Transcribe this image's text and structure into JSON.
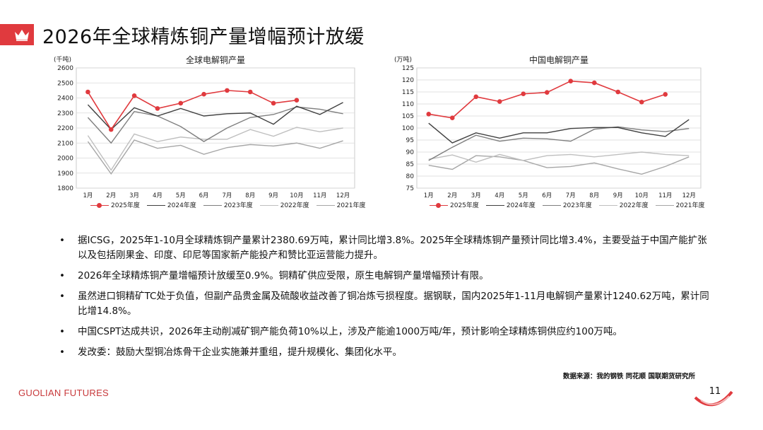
{
  "slide": {
    "title": "2026年全球精炼铜产量增幅预计放缓",
    "page_number": "11",
    "logo_text": "GUOLIAN FUTURES",
    "source": "数据来源：我的钢铁  同花顺  国联期货研究所",
    "brand_color": "#e03a3e"
  },
  "bullets": [
    "据ICSG，2025年1-10月全球精炼铜产量累计2380.69万吨，累计同比增3.8%。2025年全球精炼铜产量预计同比增3.4%，主要受益于中国产能扩张以及包括刚果金、印度、印尼等国家新产能投产和赞比亚运营能力提升。",
    "2026年全球精炼铜产量增幅预计放缓至0.9%。铜精矿供应受限，原生电解铜产量增幅预计有限。",
    "虽然进口铜精矿TC处于负值，但副产品贵金属及硫酸收益改善了铜冶炼亏损程度。据钢联，国内2025年1-11月电解铜产量累计1240.62万吨，累计同比增14.8%。",
    "中国CSPT达成共识，2026年主动削减矿铜产能负荷10%以上，涉及产能逾1000万吨/年，预计影响全球精炼铜供应约100万吨。",
    "发改委：鼓励大型铜冶炼骨干企业实施兼并重组，提升规模化、集团化水平。"
  ],
  "bullet_marker": "•",
  "chart_data": [
    {
      "type": "line",
      "title": "全球电解铜产量",
      "unit_label": "(千吨)",
      "ylim": [
        1800,
        2600
      ],
      "yticks": [
        1800,
        1900,
        2000,
        2100,
        2200,
        2300,
        2400,
        2500,
        2600
      ],
      "categories": [
        "1月",
        "2月",
        "3月",
        "4月",
        "5月",
        "6月",
        "7月",
        "8月",
        "9月",
        "10月",
        "11月",
        "12月"
      ],
      "grid": true,
      "legend_position": "bottom",
      "series": [
        {
          "name": "2025年度",
          "color": "#e03a3e",
          "marker": true,
          "values": [
            2440,
            2190,
            2415,
            2330,
            2365,
            2425,
            2450,
            2440,
            2365,
            2385,
            null,
            null
          ]
        },
        {
          "name": "2024年度",
          "color": "#404040",
          "marker": false,
          "values": [
            2355,
            2190,
            2335,
            2280,
            2330,
            2280,
            2295,
            2300,
            2225,
            2345,
            2290,
            2370
          ]
        },
        {
          "name": "2023年度",
          "color": "#7f7f7f",
          "marker": false,
          "values": [
            2270,
            2100,
            2310,
            2280,
            2210,
            2110,
            2200,
            2270,
            2290,
            2340,
            2325,
            2295
          ]
        },
        {
          "name": "2022年度",
          "color": "#bfbfbf",
          "marker": false,
          "values": [
            2150,
            1920,
            2160,
            2110,
            2140,
            2125,
            2125,
            2190,
            2145,
            2205,
            2175,
            2200
          ]
        },
        {
          "name": "2021年度",
          "color": "#a6a6a6",
          "marker": false,
          "values": [
            2110,
            1895,
            2120,
            2065,
            2085,
            2025,
            2070,
            2090,
            2080,
            2100,
            2065,
            2115
          ]
        }
      ]
    },
    {
      "type": "line",
      "title": "中国电解铜产量",
      "unit_label": "(万吨)",
      "ylim": [
        75,
        125
      ],
      "yticks": [
        75,
        80,
        85,
        90,
        95,
        100,
        105,
        110,
        115,
        120,
        125
      ],
      "categories": [
        "1月",
        "2月",
        "3月",
        "4月",
        "5月",
        "6月",
        "7月",
        "8月",
        "9月",
        "10月",
        "11月",
        "12月"
      ],
      "grid": true,
      "legend_position": "bottom",
      "series": [
        {
          "name": "2025年度",
          "color": "#e03a3e",
          "marker": true,
          "values": [
            105.8,
            104.2,
            113.0,
            111.0,
            114.2,
            114.8,
            119.5,
            118.8,
            115.0,
            110.8,
            114.0,
            null
          ]
        },
        {
          "name": "2024年度",
          "color": "#404040",
          "marker": false,
          "values": [
            102.0,
            93.8,
            98.0,
            95.8,
            98.0,
            98.0,
            99.8,
            100.2,
            100.2,
            98.0,
            96.5,
            103.5
          ]
        },
        {
          "name": "2023年度",
          "color": "#7f7f7f",
          "marker": false,
          "values": [
            86.5,
            92.0,
            97.0,
            94.5,
            95.8,
            95.5,
            94.5,
            99.5,
            100.5,
            99.2,
            98.5,
            99.8
          ]
        },
        {
          "name": "2022年度",
          "color": "#bfbfbf",
          "marker": false,
          "values": [
            87.0,
            88.8,
            85.8,
            89.0,
            86.5,
            88.5,
            89.0,
            88.0,
            89.0,
            90.0,
            89.0,
            88.5
          ]
        },
        {
          "name": "2021年度",
          "color": "#a6a6a6",
          "marker": false,
          "values": [
            84.5,
            82.8,
            88.5,
            88.0,
            86.5,
            83.5,
            84.0,
            85.5,
            83.0,
            80.8,
            84.0,
            88.0
          ]
        }
      ]
    }
  ]
}
